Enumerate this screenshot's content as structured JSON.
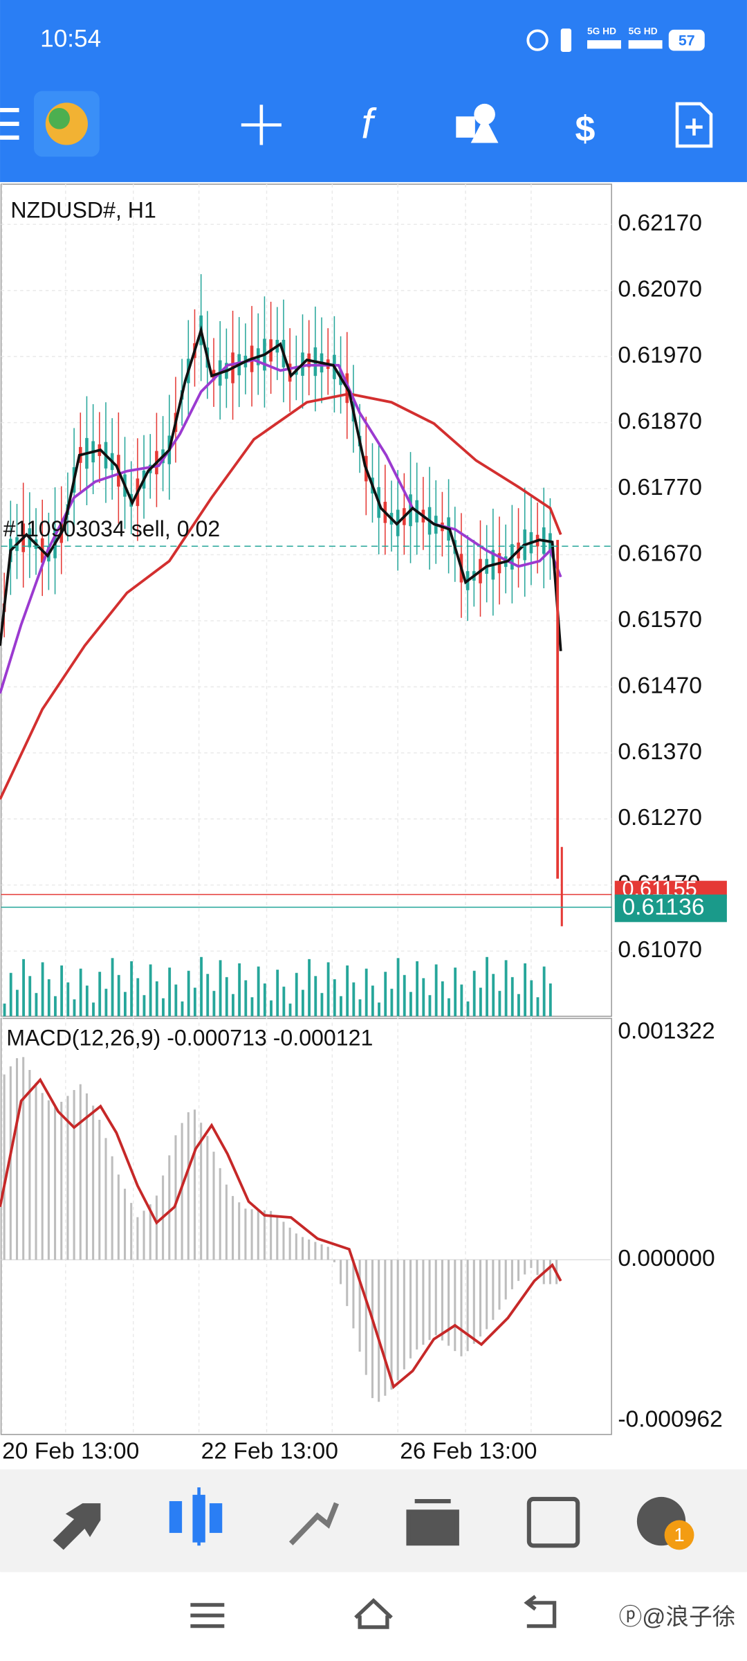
{
  "status_bar": {
    "time": "10:54",
    "network": [
      "5G HD",
      "5G HD"
    ],
    "battery": "57"
  },
  "chart": {
    "symbol": "NZDUSD#, H1",
    "order_label": "#110903034 sell, 0.02",
    "price_labels": [
      "0.62170",
      "0.62070",
      "0.61970",
      "0.61870",
      "0.61770",
      "0.61670",
      "0.61570",
      "0.61470",
      "0.61370",
      "0.61270",
      "0.61170",
      "0.61070"
    ],
    "bid_label": "0.61155",
    "ask_label": "0.61136",
    "macd_label": "MACD(12,26,9)  -0.000713  -0.000121",
    "macd_labels": [
      "0.001322",
      "0.000000",
      "-0.000962"
    ],
    "date_labels": [
      "20 Feb 13:00",
      "22 Feb 13:00",
      "26 Feb 13:00"
    ]
  },
  "bottom_nav": {
    "badge": "1"
  },
  "watermark": "ⓟ@浪子徐"
}
